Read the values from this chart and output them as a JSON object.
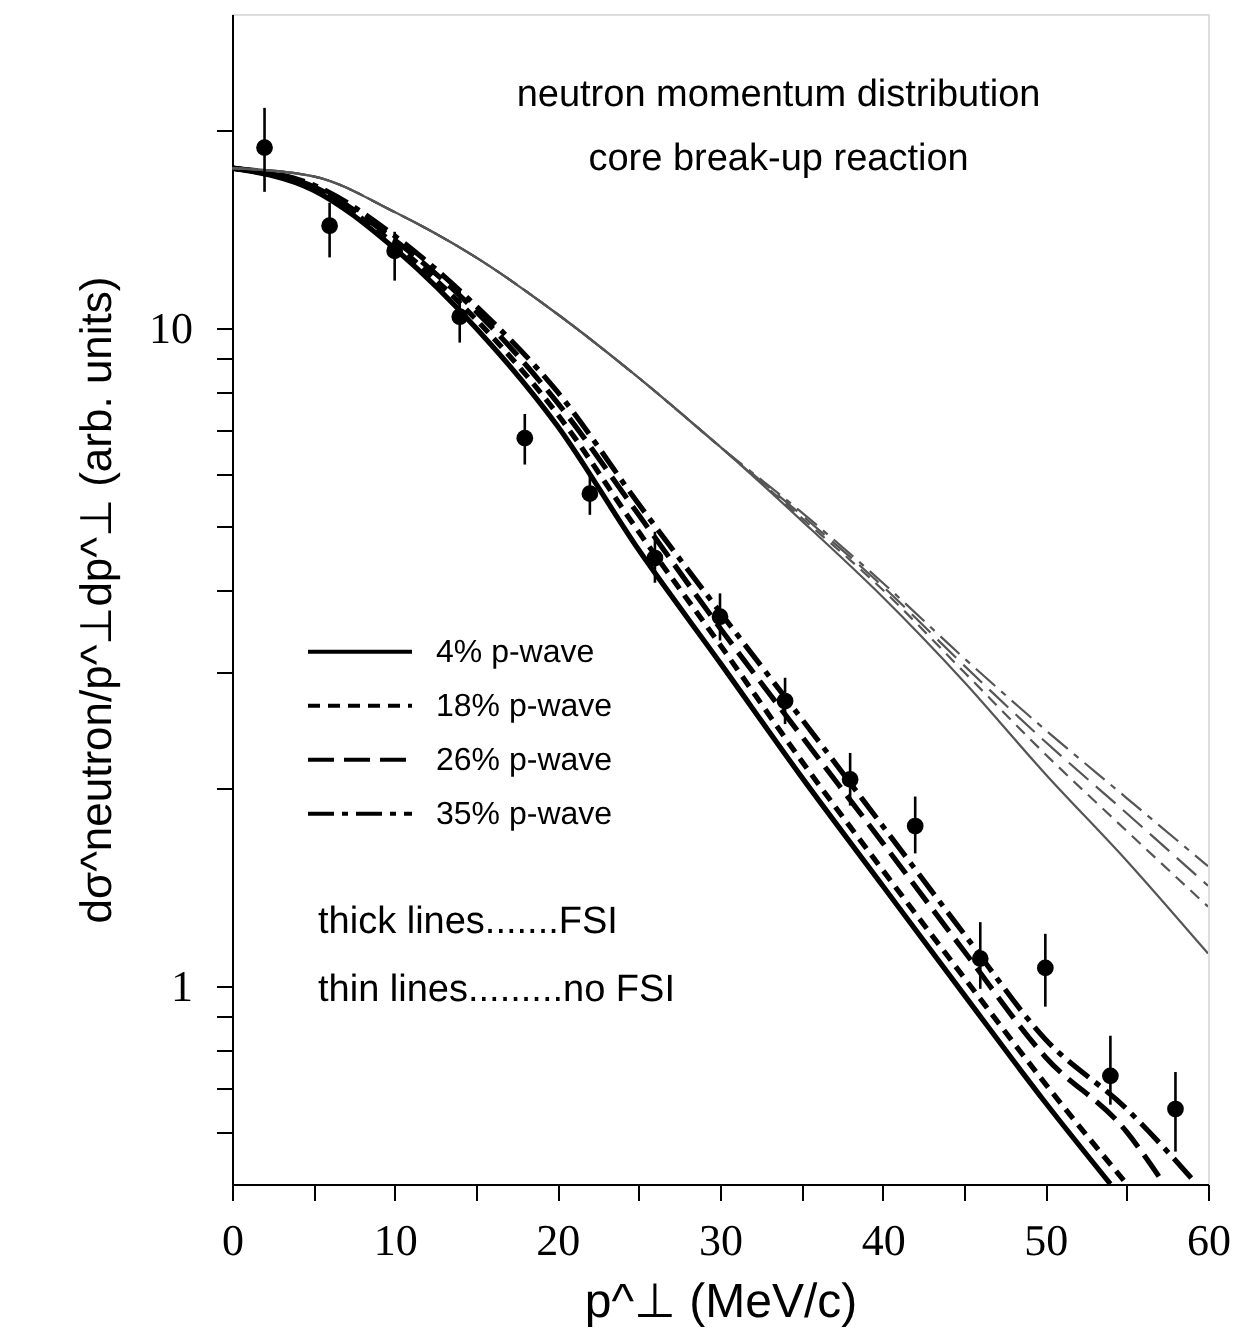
{
  "chart_data": {
    "type": "line",
    "title": "neutron momentum distribution",
    "subtitle": "core break-up reaction",
    "xlabel": "p^⊥ (MeV/c)",
    "ylabel": "dσ^neutron/p^⊥dp^⊥ (arb. units)",
    "log": "y",
    "xlim": [
      0,
      60
    ],
    "xticks": [
      0,
      {
        "value": 5,
        "label": null
      },
      10,
      {
        "value": 15,
        "label": null
      },
      20,
      {
        "value": 25,
        "label": null
      },
      30,
      {
        "value": 35,
        "label": null
      },
      40,
      {
        "value": 45,
        "label": null
      },
      50,
      {
        "value": 55,
        "label": null
      },
      60
    ],
    "ylim": [
      0.5,
      30
    ],
    "yticks": [
      {
        "value": 0.6,
        "label": null
      },
      {
        "value": 0.7,
        "label": null
      },
      {
        "value": 0.8,
        "label": null
      },
      {
        "value": 0.9,
        "label": null
      },
      1,
      {
        "value": 2,
        "label": null
      },
      {
        "value": 3,
        "label": null
      },
      {
        "value": 4,
        "label": null
      },
      {
        "value": 5,
        "label": null
      },
      {
        "value": 6,
        "label": null
      },
      {
        "value": 7,
        "label": null
      },
      {
        "value": 8,
        "label": null
      },
      {
        "value": 9,
        "label": null
      },
      10,
      {
        "value": 20,
        "label": null
      }
    ],
    "grid": false,
    "legend": "left",
    "annotations": [
      "thick lines.......FSI",
      "thin lines.........no FSI"
    ],
    "series": [
      {
        "name": "4% p-wave",
        "color": "#000000",
        "line_style": "solid",
        "x": [
          0,
          5,
          10,
          15,
          20,
          25,
          30,
          35,
          40,
          45,
          50,
          54
        ],
        "values": [
          17.5,
          16.2,
          13.2,
          10,
          7.1,
          4.6,
          3.1,
          2.08,
          1.42,
          0.97,
          0.665,
          0.5
        ]
      },
      {
        "name": "18% p-wave",
        "color": "#000000",
        "line_style": "dashed",
        "x": [
          0,
          5,
          10,
          15,
          20,
          25,
          30,
          35,
          40,
          45,
          50,
          55
        ],
        "values": [
          17.5,
          16.3,
          13.4,
          10.3,
          7.4,
          4.9,
          3.3,
          2.2,
          1.5,
          1.03,
          0.71,
          0.5
        ]
      },
      {
        "name": "26% p-wave",
        "color": "#000000",
        "line_style": "dashed",
        "x": [
          0,
          5,
          10,
          15,
          20,
          25,
          30,
          35,
          40,
          45,
          50,
          55,
          57.3
        ],
        "values": [
          17.5,
          16.4,
          13.6,
          10.6,
          7.7,
          5.2,
          3.5,
          2.4,
          1.65,
          1.13,
          0.78,
          0.6,
          0.5
        ]
      },
      {
        "name": "35% p-wave",
        "color": "#000000",
        "line_style": "dashed",
        "x": [
          0,
          5,
          10,
          15,
          20,
          25,
          30,
          35,
          40,
          45,
          50,
          55,
          59.3
        ],
        "values": [
          17.5,
          16.5,
          13.8,
          10.8,
          8.0,
          5.4,
          3.7,
          2.55,
          1.75,
          1.2,
          0.83,
          0.65,
          0.5
        ]
      },
      {
        "color": "#555555",
        "line_style": "solid",
        "x": [
          0,
          5,
          10,
          15,
          20,
          25,
          30,
          35,
          40,
          45,
          50,
          55,
          60
        ],
        "values": [
          17.5,
          17.0,
          15.0,
          12.8,
          10.5,
          8.4,
          6.6,
          5.1,
          3.9,
          2.9,
          2.1,
          1.55,
          1.12
        ]
      },
      {
        "color": "#555555",
        "line_style": "dashed",
        "x": [
          0,
          5,
          10,
          15,
          20,
          25,
          30,
          35,
          40,
          45,
          50,
          55,
          60
        ],
        "values": [
          17.5,
          17.0,
          15.0,
          12.8,
          10.5,
          8.4,
          6.6,
          5.15,
          4.0,
          3.0,
          2.25,
          1.72,
          1.32
        ]
      },
      {
        "color": "#555555",
        "line_style": "dashed",
        "x": [
          0,
          5,
          10,
          15,
          20,
          25,
          30,
          35,
          40,
          45,
          50,
          55,
          60
        ],
        "values": [
          17.5,
          17.0,
          15.0,
          12.8,
          10.5,
          8.4,
          6.6,
          5.2,
          4.05,
          3.07,
          2.35,
          1.83,
          1.42
        ]
      },
      {
        "color": "#555555",
        "line_style": "dashed",
        "x": [
          0,
          5,
          10,
          15,
          20,
          25,
          30,
          35,
          40,
          45,
          50,
          55,
          60
        ],
        "values": [
          17.5,
          17.0,
          15.0,
          12.8,
          10.5,
          8.4,
          6.6,
          5.25,
          4.1,
          3.15,
          2.45,
          1.93,
          1.52
        ]
      },
      {
        "type": "scatter",
        "marker": "circle",
        "color": "#000000",
        "x": [
          2,
          6,
          10,
          14,
          18,
          22,
          26,
          30,
          34,
          38,
          42,
          46,
          50,
          54,
          58
        ],
        "values": [
          18.8,
          14.3,
          13.1,
          10.4,
          6.8,
          5.6,
          4.47,
          3.64,
          2.71,
          2.06,
          1.75,
          1.1,
          1.065,
          0.73,
          0.65
        ],
        "errors": [
          [
            16.1,
            21.6
          ],
          [
            12.8,
            15.5
          ],
          [
            11.8,
            14.0
          ],
          [
            9.5,
            11.5
          ],
          [
            6.2,
            7.4
          ],
          [
            5.2,
            6.0
          ],
          [
            4.1,
            4.9
          ],
          [
            3.35,
            3.95
          ],
          [
            2.5,
            2.94
          ],
          [
            1.88,
            2.26
          ],
          [
            1.59,
            1.94
          ],
          [
            0.99,
            1.25
          ],
          [
            0.93,
            1.2
          ],
          [
            0.66,
            0.84
          ],
          [
            0.56,
            0.74
          ]
        ]
      }
    ]
  }
}
